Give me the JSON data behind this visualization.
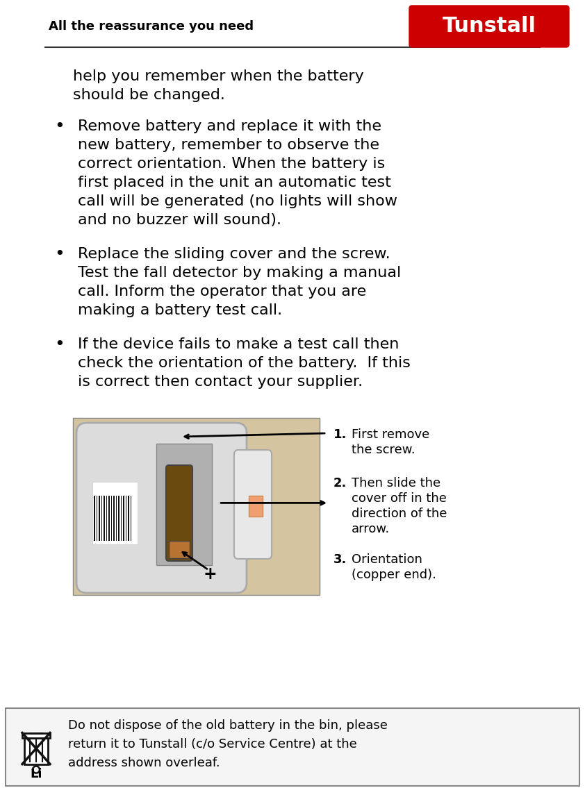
{
  "header_text": "All the reassurance you need",
  "brand_text": "Tunstall",
  "brand_bg": "#cc0000",
  "brand_text_color": "#ffffff",
  "bullet1_lines": [
    "Remove battery and replace it with the",
    "new battery, remember to observe the",
    "correct orientation. When the battery is",
    "first placed in the unit an automatic test",
    "call will be generated (no lights will show",
    "and no buzzer will sound)."
  ],
  "bullet2_lines": [
    "Replace the sliding cover and the screw.",
    "Test the fall detector by making a manual",
    "call. Inform the operator that you are",
    "making a battery test call."
  ],
  "bullet3_lines": [
    "If the device fails to make a test call then",
    "check the orientation of the battery.  If this",
    "is correct then contact your supplier."
  ],
  "intro_lines": [
    "help you remember when the battery",
    "should be changed."
  ],
  "step1_lines": [
    "First remove",
    "the screw."
  ],
  "step2_lines": [
    "Then slide the",
    "cover off in the",
    "direction of the",
    "arrow."
  ],
  "step3_lines": [
    "Orientation",
    "(copper end)."
  ],
  "footer_text_lines": [
    "Do not dispose of the old battery in the bin, please",
    "return it to Tunstall (c/o Service Centre) at the",
    "address shown overleaf."
  ],
  "bg_color": "#ffffff",
  "text_color": "#000000",
  "footer_bg": "#f0f0f0",
  "line_color": "#555555",
  "header_font_size": 13,
  "body_font_size": 16,
  "step_font_size": 13,
  "footer_font_size": 13
}
